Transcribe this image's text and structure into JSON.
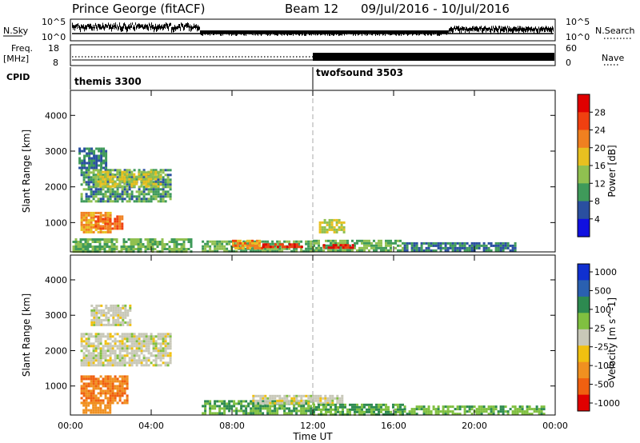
{
  "header": {
    "station": "Prince George (fitACF)",
    "beam": "Beam 12",
    "date_range": "09/Jul/2016 - 10/Jul/2016"
  },
  "top_panels": {
    "nsky_label": "N.Sky",
    "nsky_ticks": [
      "10^5",
      "10^0"
    ],
    "nsearch_label": "N.Search",
    "nsearch_ticks": [
      "10^5",
      "10^0"
    ],
    "freq_label": "Freq.",
    "freq_unit": "[MHz]",
    "freq_ticks": [
      "18",
      "8"
    ],
    "nave_label": "Nave",
    "nave_ticks": [
      "60",
      "0"
    ],
    "cpid_label": "CPID",
    "cpid_modes": [
      {
        "name": "themis 3300",
        "start_hour": 0
      },
      {
        "name": "twofsound 3503",
        "start_hour": 12
      }
    ]
  },
  "colors": {
    "power_scale": [
      "#1010e0",
      "#2a4fa0",
      "#3f9a5a",
      "#90c050",
      "#e8c020",
      "#f08020",
      "#f04010",
      "#e00000"
    ],
    "velocity_scale": [
      "#1030d0",
      "#2a60b0",
      "#2d8a50",
      "#80c040",
      "#c8c8b8",
      "#f0c010",
      "#f09020",
      "#f06010",
      "#e00000"
    ]
  },
  "chart_data": [
    {
      "type": "heatmap",
      "panel": "power",
      "xlabel": "Time UT",
      "ylabel": "Slant Range [km]",
      "ylim": [
        180,
        4700
      ],
      "xlim": [
        0,
        24
      ],
      "x_ticks": [
        "00:00",
        "04:00",
        "08:00",
        "12:00",
        "16:00",
        "20:00",
        "00:00"
      ],
      "y_ticks": [
        "1000",
        "2000",
        "3000",
        "4000"
      ],
      "colorbar_label": "Power [dB]",
      "colorbar_ticks": [
        "4",
        "8",
        "12",
        "16",
        "20",
        "24",
        "28"
      ],
      "regions": [
        {
          "t": [
            0.1,
            6.0
          ],
          "r": [
            180,
            560
          ],
          "power_db": 12
        },
        {
          "t": [
            0.5,
            2.0
          ],
          "r": [
            700,
            1300
          ],
          "power_db": 20
        },
        {
          "t": [
            1.2,
            2.6
          ],
          "r": [
            850,
            1200
          ],
          "power_db": 24
        },
        {
          "t": [
            0.5,
            5.0
          ],
          "r": [
            1600,
            2500
          ],
          "power_db": 10
        },
        {
          "t": [
            1.2,
            4.5
          ],
          "r": [
            2000,
            2450
          ],
          "power_db": 16
        },
        {
          "t": [
            0.4,
            1.8
          ],
          "r": [
            2500,
            3100
          ],
          "power_db": 8
        },
        {
          "t": [
            6.5,
            12.0
          ],
          "r": [
            200,
            500
          ],
          "power_db": 12
        },
        {
          "t": [
            8.0,
            9.5
          ],
          "r": [
            300,
            520
          ],
          "power_db": 22
        },
        {
          "t": [
            9.5,
            11.5
          ],
          "r": [
            300,
            420
          ],
          "power_db": 28
        },
        {
          "t": [
            12.0,
            16.5
          ],
          "r": [
            200,
            520
          ],
          "power_db": 12
        },
        {
          "t": [
            12.5,
            14.0
          ],
          "r": [
            280,
            400
          ],
          "power_db": 28
        },
        {
          "t": [
            16.5,
            22.0
          ],
          "r": [
            200,
            450
          ],
          "power_db": 8
        },
        {
          "t": [
            12.3,
            13.5
          ],
          "r": [
            700,
            1100
          ],
          "power_db": 16
        }
      ]
    },
    {
      "type": "heatmap",
      "panel": "velocity",
      "xlabel": "Time UT",
      "ylabel": "Slant Range [km]",
      "ylim": [
        180,
        4700
      ],
      "xlim": [
        0,
        24
      ],
      "x_ticks": [
        "00:00",
        "04:00",
        "08:00",
        "12:00",
        "16:00",
        "20:00",
        "00:00"
      ],
      "y_ticks": [
        "1000",
        "2000",
        "3000",
        "4000"
      ],
      "colorbar_label": "Velocity [m s^-1]",
      "colorbar_ticks": [
        "1000",
        "500",
        "100",
        "25",
        "-25",
        "-100",
        "-500",
        "-1000"
      ],
      "regions": [
        {
          "t": [
            0.5,
            5.0
          ],
          "r": [
            1600,
            2500
          ],
          "velocity_ms": 0
        },
        {
          "t": [
            1.0,
            3.0
          ],
          "r": [
            2700,
            3300
          ],
          "velocity_ms": 0
        },
        {
          "t": [
            0.5,
            2.8
          ],
          "r": [
            500,
            1300
          ],
          "velocity_ms": -300
        },
        {
          "t": [
            0.6,
            2.0
          ],
          "r": [
            250,
            550
          ],
          "velocity_ms": -200
        },
        {
          "t": [
            6.5,
            12.0
          ],
          "r": [
            200,
            600
          ],
          "velocity_ms": 60
        },
        {
          "t": [
            9.0,
            13.5
          ],
          "r": [
            500,
            750
          ],
          "velocity_ms": 0
        },
        {
          "t": [
            12.0,
            16.5
          ],
          "r": [
            200,
            500
          ],
          "velocity_ms": 60
        },
        {
          "t": [
            16.5,
            23.5
          ],
          "r": [
            200,
            450
          ],
          "velocity_ms": 50
        }
      ]
    }
  ]
}
